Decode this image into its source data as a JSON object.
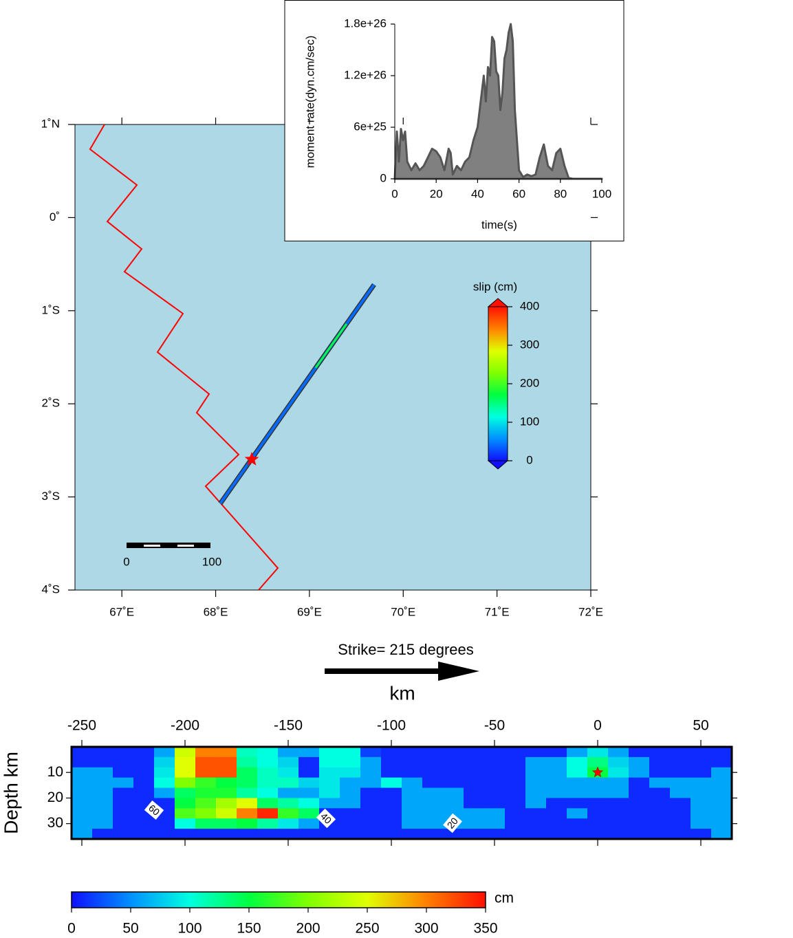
{
  "chart_data": [
    {
      "type": "map",
      "xlim": [
        66.5,
        72
      ],
      "ylim": [
        -4,
        1
      ],
      "xticks": [
        {
          "value": 67,
          "label": "67˚E"
        },
        {
          "value": 68,
          "label": "68˚E"
        },
        {
          "value": 69,
          "label": "69˚E"
        },
        {
          "value": 70,
          "label": "70˚E"
        },
        {
          "value": 71,
          "label": "71˚E"
        },
        {
          "value": 72,
          "label": "72˚E"
        }
      ],
      "yticks": [
        {
          "value": 1,
          "label": "1˚N"
        },
        {
          "value": 0,
          "label": "0˚"
        },
        {
          "value": -1,
          "label": "1˚S"
        },
        {
          "value": -2,
          "label": "2˚S"
        },
        {
          "value": -3,
          "label": "3˚S"
        },
        {
          "value": -4,
          "label": "4˚S"
        }
      ],
      "boundary": {
        "color": "#ff0000",
        "x": [
          66.815,
          66.661,
          67.16,
          66.845,
          67.211,
          67.028,
          67.651,
          67.38,
          67.93,
          67.798,
          68.245,
          67.893,
          68.663,
          68.458
        ],
        "y": [
          1.0,
          0.734,
          0.35,
          -0.042,
          -0.337,
          -0.581,
          -1.031,
          -1.445,
          -1.895,
          -2.095,
          -2.545,
          -2.885,
          -3.764,
          -4.0
        ]
      },
      "fault": {
        "x": [
          68.05,
          69.69
        ],
        "y": [
          -3.07,
          -0.72
        ]
      },
      "epicenter": {
        "x": 68.385,
        "y": -2.597
      },
      "scale_bar": [
        0,
        100
      ],
      "colorbar": {
        "title": "slip (cm)",
        "ticks": [
          0,
          100,
          200,
          300,
          400
        ]
      },
      "colormap": [
        "#1010ff",
        "#0090ff",
        "#00ffe0",
        "#00ff40",
        "#80ff00",
        "#e0ff00",
        "#ff8000",
        "#ff1000"
      ]
    },
    {
      "type": "area",
      "xlabel": "time(s)",
      "ylabel": "moment rate(dyn.cm/sec)",
      "xlim": [
        0,
        100
      ],
      "ylim": [
        0,
        1.8e+26
      ],
      "xticks": [
        0,
        20,
        40,
        60,
        80,
        100
      ],
      "yticks": [
        0,
        {
          "value": 6e+25,
          "label": "6e+25"
        },
        {
          "value": 1.2e+26,
          "label": "1.2e+26"
        },
        {
          "value": 1.8e+26,
          "label": "1.8e+26"
        }
      ],
      "color": "#808080",
      "x": [
        0,
        1,
        2,
        3,
        4,
        5,
        6,
        8,
        10,
        12,
        14,
        16,
        18,
        20,
        22,
        24,
        26,
        27,
        28,
        30,
        32,
        34,
        36,
        38,
        40,
        41,
        42,
        43,
        44,
        45,
        46,
        47,
        48,
        49,
        50,
        51,
        52,
        53,
        54,
        55,
        56,
        57,
        58,
        60,
        62,
        64,
        66,
        68,
        70,
        72,
        74,
        76,
        78,
        80,
        82,
        84,
        86,
        88,
        90,
        95,
        100
      ],
      "values": [
        0,
        5.5e+25,
        2e+25,
        5.8e+25,
        4.5e+25,
        5.5e+25,
        2e+25,
        1e+25,
        1.8e+25,
        1e+25,
        1.5e+25,
        2.5e+25,
        3.5e+25,
        3.2e+25,
        2.5e+25,
        1e+25,
        3.5e+25,
        3e+25,
        5e+24,
        1.5e+25,
        1e+25,
        2e+25,
        2.5e+25,
        4.5e+25,
        6e+25,
        8e+25,
        1e+26,
        1.2e+26,
        9e+25,
        1.3e+26,
        1.2e+26,
        1.65e+26,
        1.6e+26,
        1.25e+26,
        1.2e+26,
        8e+25,
        1e+26,
        1.4e+26,
        1.5e+26,
        1.7e+26,
        1.8e+26,
        1.6e+26,
        8e+25,
        1e+25,
        2e+24,
        5e+24,
        3e+24,
        5e+24,
        2.5e+25,
        4e+25,
        1.5e+25,
        1e+25,
        3e+25,
        3.5e+25,
        1.5e+25,
        1e+24,
        0,
        0,
        0,
        0,
        0
      ]
    },
    {
      "type": "heatmap",
      "annotation": "Strike= 215 degrees",
      "title": "km",
      "ylabel": "Depth km",
      "xlim": [
        -255,
        65
      ],
      "ylim": [
        0,
        36
      ],
      "xticks": [
        -250,
        -200,
        -150,
        -100,
        -50,
        0,
        50
      ],
      "yticks": [
        10,
        20,
        30
      ],
      "x_bins": [
        -255,
        -245,
        -235,
        -225,
        -215,
        -205,
        -195,
        -185,
        -175,
        -165,
        -155,
        -145,
        -135,
        -125,
        -115,
        -105,
        -95,
        -85,
        -75,
        -65,
        -55,
        -45,
        -35,
        -25,
        -15,
        -5,
        5,
        15,
        25,
        35,
        45,
        55,
        65
      ],
      "y_bins": [
        0,
        4,
        8,
        12,
        16,
        20,
        24,
        28,
        32,
        36
      ],
      "values": [
        [
          10,
          10,
          10,
          10,
          60,
          240,
          300,
          300,
          110,
          100,
          60,
          60,
          100,
          100,
          20,
          10,
          10,
          10,
          10,
          10,
          10,
          10,
          10,
          10,
          60,
          90,
          60,
          10,
          10,
          10,
          10,
          10
        ],
        [
          10,
          10,
          10,
          10,
          80,
          250,
          320,
          320,
          120,
          100,
          80,
          10,
          100,
          100,
          60,
          10,
          10,
          10,
          10,
          10,
          10,
          10,
          60,
          60,
          100,
          130,
          80,
          60,
          10,
          10,
          10,
          10
        ],
        [
          60,
          60,
          10,
          10,
          90,
          250,
          320,
          320,
          140,
          110,
          90,
          10,
          90,
          90,
          60,
          10,
          10,
          10,
          10,
          10,
          10,
          10,
          60,
          60,
          100,
          150,
          90,
          60,
          10,
          10,
          10,
          60
        ],
        [
          60,
          60,
          60,
          10,
          100,
          200,
          170,
          150,
          140,
          110,
          110,
          80,
          90,
          60,
          60,
          100,
          60,
          10,
          10,
          10,
          10,
          10,
          60,
          60,
          60,
          60,
          60,
          10,
          60,
          60,
          60,
          60
        ],
        [
          60,
          60,
          10,
          10,
          60,
          140,
          160,
          160,
          120,
          100,
          60,
          60,
          90,
          60,
          10,
          10,
          60,
          60,
          60,
          10,
          10,
          10,
          60,
          60,
          60,
          60,
          60,
          10,
          10,
          60,
          60,
          60
        ],
        [
          60,
          60,
          10,
          10,
          10,
          150,
          180,
          220,
          250,
          140,
          120,
          100,
          60,
          60,
          10,
          10,
          60,
          60,
          60,
          10,
          10,
          10,
          60,
          10,
          10,
          10,
          10,
          10,
          10,
          10,
          60,
          60
        ],
        [
          60,
          60,
          10,
          10,
          10,
          180,
          200,
          240,
          300,
          340,
          170,
          140,
          10,
          10,
          10,
          10,
          60,
          60,
          60,
          60,
          60,
          10,
          10,
          10,
          60,
          10,
          10,
          10,
          10,
          10,
          60,
          60
        ],
        [
          60,
          60,
          10,
          10,
          10,
          100,
          140,
          140,
          150,
          120,
          90,
          60,
          10,
          10,
          10,
          10,
          60,
          60,
          60,
          60,
          60,
          10,
          10,
          10,
          10,
          10,
          10,
          10,
          10,
          10,
          60,
          60
        ],
        [
          60,
          10,
          10,
          10,
          10,
          10,
          10,
          10,
          10,
          10,
          10,
          10,
          10,
          10,
          10,
          10,
          10,
          10,
          10,
          10,
          10,
          10,
          10,
          10,
          10,
          10,
          10,
          10,
          10,
          10,
          10,
          60
        ]
      ],
      "contour_labels": [
        "60",
        "40",
        "20"
      ],
      "hypocenter": {
        "x": 0,
        "y": 10
      },
      "clim": [
        0,
        350
      ],
      "colorbar": {
        "label": "cm",
        "ticks": [
          0,
          50,
          100,
          150,
          200,
          250,
          300,
          350
        ]
      },
      "colormap": [
        "#1010ff",
        "#0090ff",
        "#00ffe0",
        "#00ff40",
        "#80ff00",
        "#e0ff00",
        "#ff8000",
        "#ff1000"
      ]
    }
  ]
}
